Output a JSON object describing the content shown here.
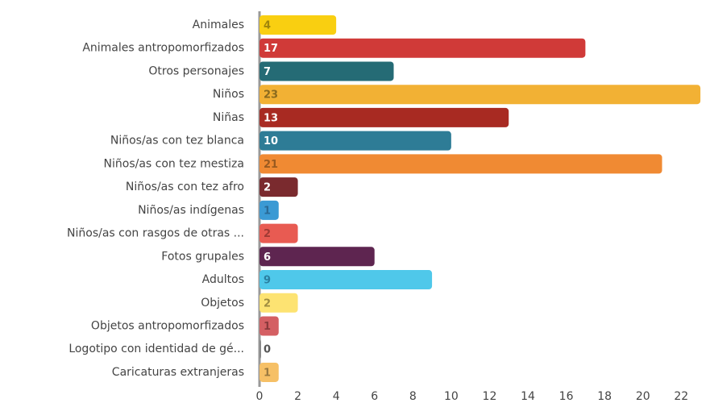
{
  "chart_data": {
    "type": "hbar",
    "categories": [
      "Animales",
      "Animales antropomorfizados",
      "Otros personajes",
      "Niños",
      "Niñas",
      "Niños/as con tez blanca",
      "Niños/as con tez mestiza",
      "Niños/as con tez afro",
      "Niños/as indígenas",
      "Niños/as con rasgos de otras ...",
      "Fotos grupales",
      "Adultos",
      "Objetos",
      "Objetos antropomorfizados",
      "Logotipo con identidad de gé...",
      "Caricaturas extranjeras"
    ],
    "values": [
      4,
      17,
      7,
      23,
      13,
      10,
      21,
      2,
      1,
      2,
      6,
      9,
      2,
      1,
      0,
      1
    ],
    "colors": [
      "#f9cf11",
      "#d03a38",
      "#256b75",
      "#f2b134",
      "#a82a22",
      "#2e7c96",
      "#f08a33",
      "#7a2a2e",
      "#3b9ad4",
      "#e85b52",
      "#5e2550",
      "#4fc8ea",
      "#fde372",
      "#d45f63",
      "#8a8a8a",
      "#f6c066"
    ],
    "label_colors": [
      "#a0850a",
      "#ffffff",
      "#ffffff",
      "#8a6a1e",
      "#ffffff",
      "#ffffff",
      "#9a5a20",
      "#ffffff",
      "#2a6a96",
      "#a03a34",
      "#ffffff",
      "#2a7fa0",
      "#a08d40",
      "#8a3a3c",
      "#555555",
      "#9a7a40"
    ],
    "xlim": [
      0,
      23.5
    ],
    "xticks": [
      0,
      2,
      4,
      6,
      8,
      10,
      12,
      14,
      16,
      18,
      20,
      22
    ],
    "grid": false
  }
}
